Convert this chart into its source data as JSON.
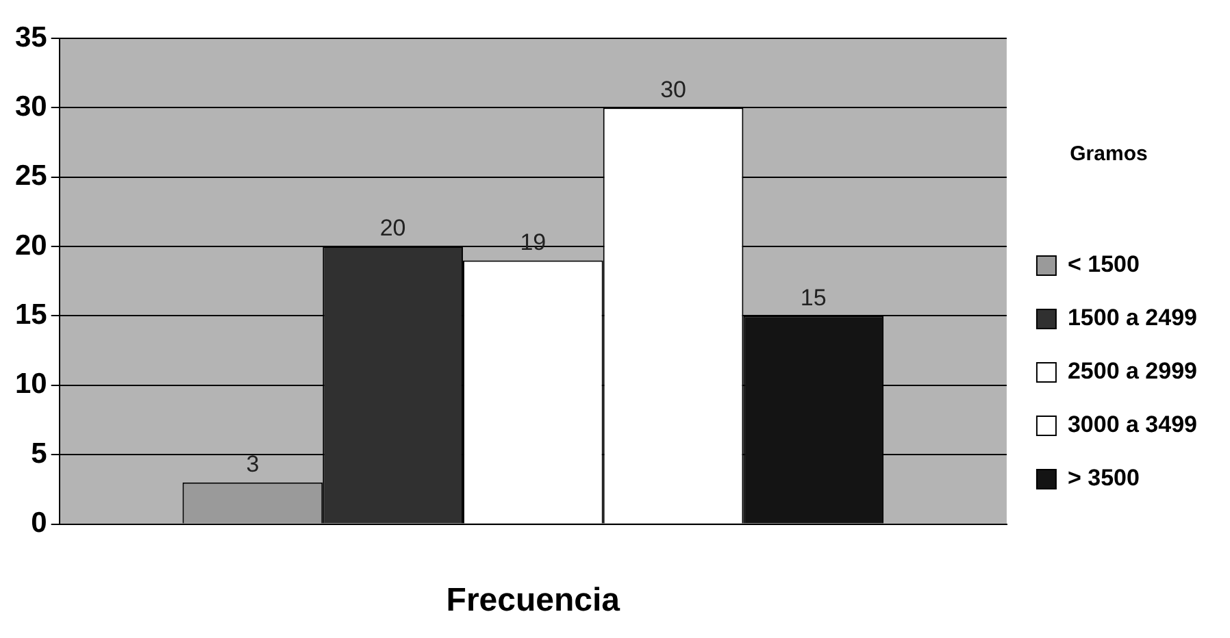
{
  "chart_data": {
    "type": "bar",
    "xlabel": "Frecuencia",
    "legend_title": "Gramos",
    "categories": [
      null
    ],
    "series": [
      {
        "name": "< 1500",
        "color": "#9a9a9a",
        "values": [
          3
        ]
      },
      {
        "name": "1500 a 2499",
        "color": "#303030",
        "values": [
          20
        ]
      },
      {
        "name": "2500 a 2999",
        "color": "#ffffff",
        "values": [
          19
        ]
      },
      {
        "name": "3000 a 3499",
        "color": "#ffffff",
        "values": [
          30
        ]
      },
      {
        "name": "> 3500",
        "color": "#141414",
        "values": [
          15
        ]
      }
    ],
    "ylim": [
      0,
      35
    ],
    "yticks": [
      0,
      5,
      10,
      15,
      20,
      25,
      30,
      35
    ],
    "grid": "y",
    "legend": "right",
    "data_labels": true
  }
}
